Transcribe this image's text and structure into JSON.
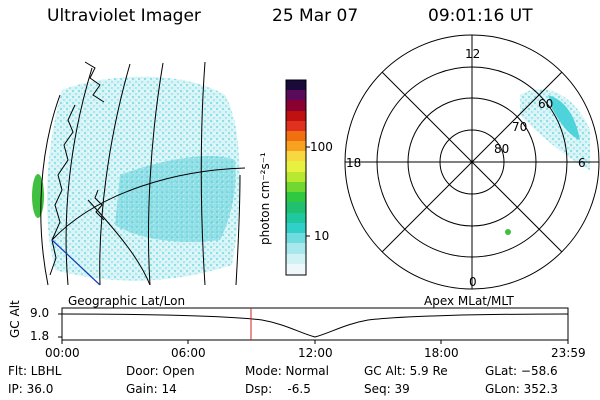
{
  "header": {
    "instrument": "Ultraviolet Imager",
    "date": "25 Mar 07",
    "time": "09:01:16 UT"
  },
  "geo_panel": {
    "label": "Geographic Lat/Lon"
  },
  "polar_panel": {
    "label": "Apex MLat/MLT",
    "mlt_labels": [
      "12",
      "18",
      "6",
      "0"
    ],
    "lat_labels": [
      "60",
      "70",
      "80"
    ]
  },
  "colorbar": {
    "unit_label": "photon cm⁻²s⁻¹",
    "ticks": [
      "100",
      "10"
    ]
  },
  "altitude_strip": {
    "axis_label": "GC Alt",
    "y_ticks": [
      "9.0",
      "1.8"
    ],
    "time_ticks": [
      "00:00",
      "06:00",
      "12:00",
      "18:00",
      "23:59"
    ]
  },
  "footer": {
    "filter": "Flt: LBHL",
    "ip": "IP: 36.0",
    "door": "Door: Open",
    "gain": "Gain: 14",
    "mode": "Mode: Normal",
    "dsp": "Dsp:    -6.5",
    "gc_alt": "GC Alt: 5.9 Re",
    "seq": "Seq: 39",
    "glat": "GLat: −58.6",
    "glon": "GLon: 352.3"
  },
  "colors": {
    "aurora_cyan": "#40d0d8",
    "aurora_green": "#40c040",
    "marker_red": "#d02020"
  }
}
